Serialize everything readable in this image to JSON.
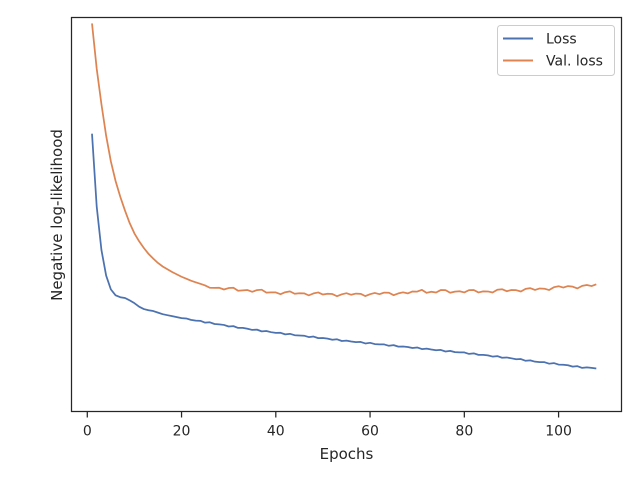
{
  "chart_data": {
    "type": "line",
    "title": "",
    "xlabel": "Epochs",
    "ylabel": "Negative log-likelihood",
    "xlim": [
      -3.35,
      113.35
    ],
    "ylim": [
      0.0,
      1.0
    ],
    "x_ticks": [
      0,
      20,
      40,
      60,
      80,
      100
    ],
    "x_tick_labels": [
      "0",
      "20",
      "40",
      "60",
      "80",
      "100"
    ],
    "y_ticks_shown": false,
    "grid": false,
    "legend_position": "top-right",
    "series": [
      {
        "name": "Loss",
        "color": "#4c72b0",
        "anchors": [
          [
            1,
            0.705
          ],
          [
            2,
            0.52
          ],
          [
            3,
            0.41
          ],
          [
            4,
            0.345
          ],
          [
            5,
            0.31
          ],
          [
            6,
            0.295
          ],
          [
            7,
            0.29
          ],
          [
            8,
            0.288
          ],
          [
            9,
            0.282
          ],
          [
            10,
            0.275
          ],
          [
            11,
            0.266
          ],
          [
            12,
            0.26
          ],
          [
            13,
            0.257
          ],
          [
            14,
            0.255
          ],
          [
            15,
            0.251
          ],
          [
            16,
            0.247
          ],
          [
            18,
            0.242
          ],
          [
            20,
            0.237
          ],
          [
            25,
            0.227
          ],
          [
            30,
            0.217
          ],
          [
            35,
            0.208
          ],
          [
            40,
            0.2
          ],
          [
            45,
            0.193
          ],
          [
            50,
            0.186
          ],
          [
            55,
            0.179
          ],
          [
            60,
            0.173
          ],
          [
            65,
            0.167
          ],
          [
            70,
            0.161
          ],
          [
            75,
            0.155
          ],
          [
            80,
            0.149
          ],
          [
            85,
            0.142
          ],
          [
            90,
            0.135
          ],
          [
            95,
            0.127
          ],
          [
            100,
            0.12
          ],
          [
            105,
            0.112
          ],
          [
            108,
            0.11
          ]
        ]
      },
      {
        "name": "Val. loss",
        "color": "#dd8452",
        "anchors": [
          [
            1,
            0.985
          ],
          [
            2,
            0.87
          ],
          [
            3,
            0.78
          ],
          [
            4,
            0.7
          ],
          [
            5,
            0.635
          ],
          [
            6,
            0.585
          ],
          [
            7,
            0.545
          ],
          [
            8,
            0.51
          ],
          [
            9,
            0.478
          ],
          [
            10,
            0.452
          ],
          [
            11,
            0.432
          ],
          [
            12,
            0.415
          ],
          [
            13,
            0.4
          ],
          [
            14,
            0.388
          ],
          [
            15,
            0.377
          ],
          [
            16,
            0.368
          ],
          [
            18,
            0.354
          ],
          [
            20,
            0.342
          ],
          [
            22,
            0.332
          ],
          [
            25,
            0.32
          ],
          [
            28,
            0.313
          ],
          [
            30,
            0.311
          ],
          [
            35,
            0.307
          ],
          [
            40,
            0.302
          ],
          [
            45,
            0.3
          ],
          [
            50,
            0.298
          ],
          [
            55,
            0.297
          ],
          [
            60,
            0.298
          ],
          [
            65,
            0.3
          ],
          [
            70,
            0.302
          ],
          [
            71,
            0.313
          ],
          [
            72,
            0.302
          ],
          [
            75,
            0.305
          ],
          [
            80,
            0.305
          ],
          [
            85,
            0.305
          ],
          [
            90,
            0.308
          ],
          [
            95,
            0.31
          ],
          [
            100,
            0.315
          ],
          [
            105,
            0.318
          ],
          [
            108,
            0.32
          ]
        ]
      }
    ]
  }
}
